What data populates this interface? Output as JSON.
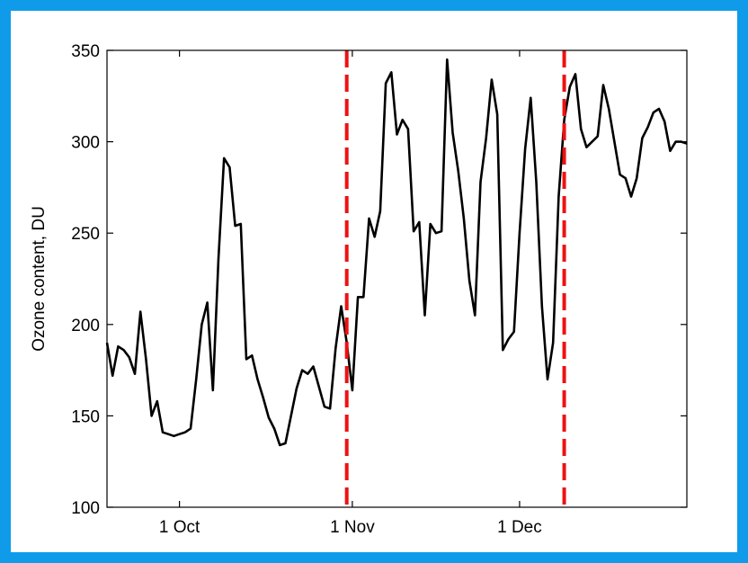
{
  "chart_data": {
    "type": "line",
    "title": "",
    "xlabel": "",
    "ylabel": "Ozone content, DU",
    "x_unit": "date",
    "xlim": [
      "2008-09-18",
      "2008-12-31"
    ],
    "ylim": [
      100,
      350
    ],
    "yticks": [
      100,
      150,
      200,
      250,
      300,
      350
    ],
    "xticks": [
      {
        "date": "2008-10-01",
        "label": "1 Oct"
      },
      {
        "date": "2008-11-01",
        "label": "1 Nov"
      },
      {
        "date": "2008-12-01",
        "label": "1 Dec"
      }
    ],
    "grid": false,
    "colors": {
      "line": "#000000",
      "marker_lines": "#ee1111",
      "background": "#0f9bea"
    },
    "series": [
      {
        "points": [
          [
            "2008-09-18",
            190
          ],
          [
            "2008-09-19",
            172
          ],
          [
            "2008-09-20",
            188
          ],
          [
            "2008-09-21",
            186
          ],
          [
            "2008-09-22",
            182
          ],
          [
            "2008-09-23",
            173
          ],
          [
            "2008-09-24",
            207
          ],
          [
            "2008-09-25",
            181
          ],
          [
            "2008-09-26",
            150
          ],
          [
            "2008-09-27",
            158
          ],
          [
            "2008-09-28",
            141
          ],
          [
            "2008-09-29",
            140
          ],
          [
            "2008-09-30",
            139
          ],
          [
            "2008-10-01",
            140
          ],
          [
            "2008-10-02",
            141
          ],
          [
            "2008-10-03",
            143
          ],
          [
            "2008-10-04",
            170
          ],
          [
            "2008-10-05",
            200
          ],
          [
            "2008-10-06",
            212
          ],
          [
            "2008-10-07",
            164
          ],
          [
            "2008-10-08",
            236
          ],
          [
            "2008-10-09",
            291
          ],
          [
            "2008-10-10",
            286
          ],
          [
            "2008-10-11",
            254
          ],
          [
            "2008-10-12",
            255
          ],
          [
            "2008-10-13",
            181
          ],
          [
            "2008-10-14",
            183
          ],
          [
            "2008-10-15",
            170
          ],
          [
            "2008-10-16",
            160
          ],
          [
            "2008-10-17",
            149
          ],
          [
            "2008-10-18",
            143
          ],
          [
            "2008-10-19",
            134
          ],
          [
            "2008-10-20",
            135
          ],
          [
            "2008-10-21",
            150
          ],
          [
            "2008-10-22",
            165
          ],
          [
            "2008-10-23",
            175
          ],
          [
            "2008-10-24",
            173
          ],
          [
            "2008-10-25",
            177
          ],
          [
            "2008-10-26",
            166
          ],
          [
            "2008-10-27",
            155
          ],
          [
            "2008-10-28",
            154
          ],
          [
            "2008-10-29",
            187
          ],
          [
            "2008-10-30",
            210
          ],
          [
            "2008-10-31",
            190
          ],
          [
            "2008-11-01",
            164
          ],
          [
            "2008-11-02",
            215
          ],
          [
            "2008-11-03",
            215
          ],
          [
            "2008-11-04",
            258
          ],
          [
            "2008-11-05",
            248
          ],
          [
            "2008-11-06",
            262
          ],
          [
            "2008-11-07",
            332
          ],
          [
            "2008-11-08",
            338
          ],
          [
            "2008-11-09",
            304
          ],
          [
            "2008-11-10",
            312
          ],
          [
            "2008-11-11",
            307
          ],
          [
            "2008-11-12",
            251
          ],
          [
            "2008-11-13",
            256
          ],
          [
            "2008-11-14",
            205
          ],
          [
            "2008-11-15",
            255
          ],
          [
            "2008-11-16",
            250
          ],
          [
            "2008-11-17",
            251
          ],
          [
            "2008-11-18",
            345
          ],
          [
            "2008-11-19",
            305
          ],
          [
            "2008-11-20",
            284
          ],
          [
            "2008-11-21",
            258
          ],
          [
            "2008-11-22",
            224
          ],
          [
            "2008-11-23",
            205
          ],
          [
            "2008-11-24",
            278
          ],
          [
            "2008-11-25",
            302
          ],
          [
            "2008-11-26",
            334
          ],
          [
            "2008-11-27",
            315
          ],
          [
            "2008-11-28",
            186
          ],
          [
            "2008-11-29",
            192
          ],
          [
            "2008-11-30",
            196
          ],
          [
            "2008-12-01",
            250
          ],
          [
            "2008-12-02",
            296
          ],
          [
            "2008-12-03",
            324
          ],
          [
            "2008-12-04",
            278
          ],
          [
            "2008-12-05",
            210
          ],
          [
            "2008-12-06",
            170
          ],
          [
            "2008-12-07",
            190
          ],
          [
            "2008-12-08",
            270
          ],
          [
            "2008-12-09",
            312
          ],
          [
            "2008-12-10",
            330
          ],
          [
            "2008-12-11",
            337
          ],
          [
            "2008-12-12",
            307
          ],
          [
            "2008-12-13",
            297
          ],
          [
            "2008-12-14",
            300
          ],
          [
            "2008-12-15",
            303
          ],
          [
            "2008-12-16",
            331
          ],
          [
            "2008-12-17",
            318
          ],
          [
            "2008-12-18",
            300
          ],
          [
            "2008-12-19",
            282
          ],
          [
            "2008-12-20",
            280
          ],
          [
            "2008-12-21",
            270
          ],
          [
            "2008-12-22",
            280
          ],
          [
            "2008-12-23",
            302
          ],
          [
            "2008-12-24",
            308
          ],
          [
            "2008-12-25",
            316
          ],
          [
            "2008-12-26",
            318
          ],
          [
            "2008-12-27",
            311
          ],
          [
            "2008-12-28",
            295
          ],
          [
            "2008-12-29",
            300
          ],
          [
            "2008-12-30",
            300
          ],
          [
            "2008-12-31",
            299
          ]
        ]
      }
    ],
    "vertical_markers": [
      "2008-10-31",
      "2008-12-09"
    ]
  }
}
